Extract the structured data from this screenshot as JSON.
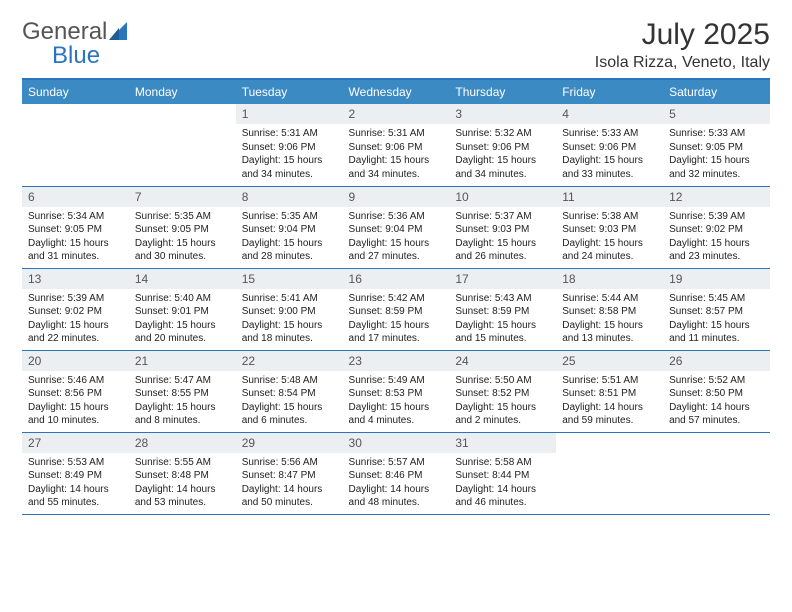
{
  "logo": {
    "text1": "General",
    "text2": "Blue"
  },
  "title": {
    "month": "July 2025",
    "location": "Isola Rizza, Veneto, Italy"
  },
  "colors": {
    "header_bg": "#3b8ac4",
    "header_fg": "#ffffff",
    "rule": "#2a75bb",
    "daynum_bg": "#eceff1",
    "daynum_fg": "#555555",
    "body_text": "#222222",
    "page_bg": "#ffffff"
  },
  "layout": {
    "columns": 7,
    "rows": 5,
    "start_day_index": 2
  },
  "weekdays": [
    "Sunday",
    "Monday",
    "Tuesday",
    "Wednesday",
    "Thursday",
    "Friday",
    "Saturday"
  ],
  "days": [
    {
      "n": 1,
      "sunrise": "5:31 AM",
      "sunset": "9:06 PM",
      "daylight": "15 hours and 34 minutes."
    },
    {
      "n": 2,
      "sunrise": "5:31 AM",
      "sunset": "9:06 PM",
      "daylight": "15 hours and 34 minutes."
    },
    {
      "n": 3,
      "sunrise": "5:32 AM",
      "sunset": "9:06 PM",
      "daylight": "15 hours and 34 minutes."
    },
    {
      "n": 4,
      "sunrise": "5:33 AM",
      "sunset": "9:06 PM",
      "daylight": "15 hours and 33 minutes."
    },
    {
      "n": 5,
      "sunrise": "5:33 AM",
      "sunset": "9:05 PM",
      "daylight": "15 hours and 32 minutes."
    },
    {
      "n": 6,
      "sunrise": "5:34 AM",
      "sunset": "9:05 PM",
      "daylight": "15 hours and 31 minutes."
    },
    {
      "n": 7,
      "sunrise": "5:35 AM",
      "sunset": "9:05 PM",
      "daylight": "15 hours and 30 minutes."
    },
    {
      "n": 8,
      "sunrise": "5:35 AM",
      "sunset": "9:04 PM",
      "daylight": "15 hours and 28 minutes."
    },
    {
      "n": 9,
      "sunrise": "5:36 AM",
      "sunset": "9:04 PM",
      "daylight": "15 hours and 27 minutes."
    },
    {
      "n": 10,
      "sunrise": "5:37 AM",
      "sunset": "9:03 PM",
      "daylight": "15 hours and 26 minutes."
    },
    {
      "n": 11,
      "sunrise": "5:38 AM",
      "sunset": "9:03 PM",
      "daylight": "15 hours and 24 minutes."
    },
    {
      "n": 12,
      "sunrise": "5:39 AM",
      "sunset": "9:02 PM",
      "daylight": "15 hours and 23 minutes."
    },
    {
      "n": 13,
      "sunrise": "5:39 AM",
      "sunset": "9:02 PM",
      "daylight": "15 hours and 22 minutes."
    },
    {
      "n": 14,
      "sunrise": "5:40 AM",
      "sunset": "9:01 PM",
      "daylight": "15 hours and 20 minutes."
    },
    {
      "n": 15,
      "sunrise": "5:41 AM",
      "sunset": "9:00 PM",
      "daylight": "15 hours and 18 minutes."
    },
    {
      "n": 16,
      "sunrise": "5:42 AM",
      "sunset": "8:59 PM",
      "daylight": "15 hours and 17 minutes."
    },
    {
      "n": 17,
      "sunrise": "5:43 AM",
      "sunset": "8:59 PM",
      "daylight": "15 hours and 15 minutes."
    },
    {
      "n": 18,
      "sunrise": "5:44 AM",
      "sunset": "8:58 PM",
      "daylight": "15 hours and 13 minutes."
    },
    {
      "n": 19,
      "sunrise": "5:45 AM",
      "sunset": "8:57 PM",
      "daylight": "15 hours and 11 minutes."
    },
    {
      "n": 20,
      "sunrise": "5:46 AM",
      "sunset": "8:56 PM",
      "daylight": "15 hours and 10 minutes."
    },
    {
      "n": 21,
      "sunrise": "5:47 AM",
      "sunset": "8:55 PM",
      "daylight": "15 hours and 8 minutes."
    },
    {
      "n": 22,
      "sunrise": "5:48 AM",
      "sunset": "8:54 PM",
      "daylight": "15 hours and 6 minutes."
    },
    {
      "n": 23,
      "sunrise": "5:49 AM",
      "sunset": "8:53 PM",
      "daylight": "15 hours and 4 minutes."
    },
    {
      "n": 24,
      "sunrise": "5:50 AM",
      "sunset": "8:52 PM",
      "daylight": "15 hours and 2 minutes."
    },
    {
      "n": 25,
      "sunrise": "5:51 AM",
      "sunset": "8:51 PM",
      "daylight": "14 hours and 59 minutes."
    },
    {
      "n": 26,
      "sunrise": "5:52 AM",
      "sunset": "8:50 PM",
      "daylight": "14 hours and 57 minutes."
    },
    {
      "n": 27,
      "sunrise": "5:53 AM",
      "sunset": "8:49 PM",
      "daylight": "14 hours and 55 minutes."
    },
    {
      "n": 28,
      "sunrise": "5:55 AM",
      "sunset": "8:48 PM",
      "daylight": "14 hours and 53 minutes."
    },
    {
      "n": 29,
      "sunrise": "5:56 AM",
      "sunset": "8:47 PM",
      "daylight": "14 hours and 50 minutes."
    },
    {
      "n": 30,
      "sunrise": "5:57 AM",
      "sunset": "8:46 PM",
      "daylight": "14 hours and 48 minutes."
    },
    {
      "n": 31,
      "sunrise": "5:58 AM",
      "sunset": "8:44 PM",
      "daylight": "14 hours and 46 minutes."
    }
  ],
  "labels": {
    "sunrise": "Sunrise:",
    "sunset": "Sunset:",
    "daylight": "Daylight:"
  }
}
